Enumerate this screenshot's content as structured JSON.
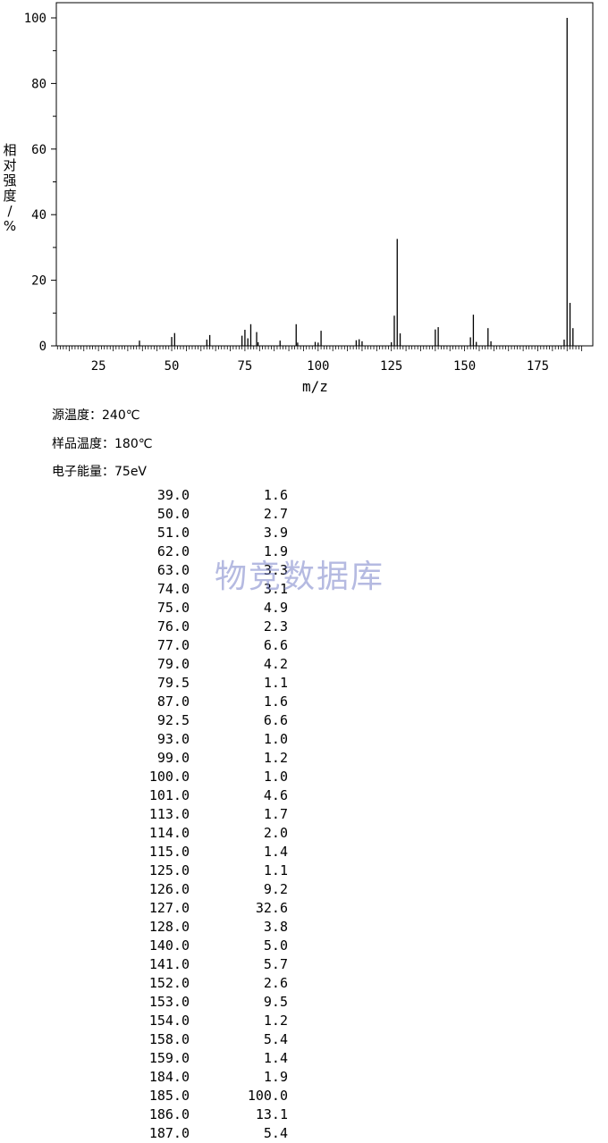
{
  "chart_data": {
    "type": "bar",
    "xlabel": "m/z",
    "ylabel": "相对强度/%",
    "xlim": [
      10,
      192
    ],
    "ylim": [
      0,
      100
    ],
    "x_ticks": [
      25,
      50,
      75,
      100,
      125,
      150,
      175
    ],
    "y_ticks": [
      0,
      20,
      40,
      60,
      80,
      100
    ],
    "grid": false,
    "peaks": [
      {
        "mz": "39.0",
        "abundance": "1.6"
      },
      {
        "mz": "50.0",
        "abundance": "2.7"
      },
      {
        "mz": "51.0",
        "abundance": "3.9"
      },
      {
        "mz": "62.0",
        "abundance": "1.9"
      },
      {
        "mz": "63.0",
        "abundance": "3.3"
      },
      {
        "mz": "74.0",
        "abundance": "3.1"
      },
      {
        "mz": "75.0",
        "abundance": "4.9"
      },
      {
        "mz": "76.0",
        "abundance": "2.3"
      },
      {
        "mz": "77.0",
        "abundance": "6.6"
      },
      {
        "mz": "79.0",
        "abundance": "4.2"
      },
      {
        "mz": "79.5",
        "abundance": "1.1"
      },
      {
        "mz": "87.0",
        "abundance": "1.6"
      },
      {
        "mz": "92.5",
        "abundance": "6.6"
      },
      {
        "mz": "93.0",
        "abundance": "1.0"
      },
      {
        "mz": "99.0",
        "abundance": "1.2"
      },
      {
        "mz": "100.0",
        "abundance": "1.0"
      },
      {
        "mz": "101.0",
        "abundance": "4.6"
      },
      {
        "mz": "113.0",
        "abundance": "1.7"
      },
      {
        "mz": "114.0",
        "abundance": "2.0"
      },
      {
        "mz": "115.0",
        "abundance": "1.4"
      },
      {
        "mz": "125.0",
        "abundance": "1.1"
      },
      {
        "mz": "126.0",
        "abundance": "9.2"
      },
      {
        "mz": "127.0",
        "abundance": "32.6"
      },
      {
        "mz": "128.0",
        "abundance": "3.8"
      },
      {
        "mz": "140.0",
        "abundance": "5.0"
      },
      {
        "mz": "141.0",
        "abundance": "5.7"
      },
      {
        "mz": "152.0",
        "abundance": "2.6"
      },
      {
        "mz": "153.0",
        "abundance": "9.5"
      },
      {
        "mz": "154.0",
        "abundance": "1.2"
      },
      {
        "mz": "158.0",
        "abundance": "5.4"
      },
      {
        "mz": "159.0",
        "abundance": "1.4"
      },
      {
        "mz": "184.0",
        "abundance": "1.9"
      },
      {
        "mz": "185.0",
        "abundance": "100.0"
      },
      {
        "mz": "186.0",
        "abundance": "13.1"
      },
      {
        "mz": "187.0",
        "abundance": "5.4"
      }
    ]
  },
  "conditions": {
    "source_temp": "源温度：240℃",
    "sample_temp": "样品温度：180℃",
    "electron_energy": "电子能量：75eV"
  },
  "watermark": "物竞数据库"
}
